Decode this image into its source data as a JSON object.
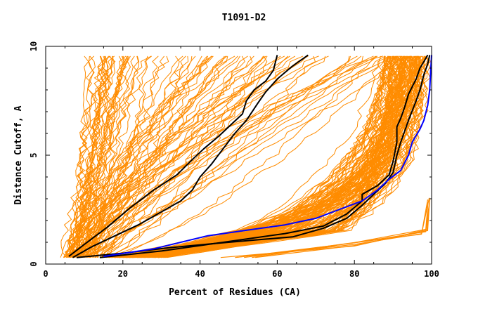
{
  "chart_data": {
    "type": "line",
    "title": "T1091-D2",
    "xlabel": "Percent of Residues (CA)",
    "ylabel": "Distance Cutoff, A",
    "xlim": [
      0,
      100
    ],
    "ylim": [
      0,
      10
    ],
    "x_ticks": [
      "0",
      "20",
      "40",
      "60",
      "80",
      "100"
    ],
    "y_ticks": [
      "0",
      "5",
      "10"
    ],
    "grid": false,
    "colors": {
      "background_curves": "#ff8c00",
      "highlight_black": "#000000",
      "highlight_blue": "#0000ff"
    },
    "highlighted_series": [
      {
        "color": "#000000",
        "points": [
          [
            7,
            0.3
          ],
          [
            12,
            0.8
          ],
          [
            18,
            1.3
          ],
          [
            24,
            1.8
          ],
          [
            30,
            2.4
          ],
          [
            35,
            2.9
          ],
          [
            38,
            3.4
          ],
          [
            40,
            4.0
          ],
          [
            43,
            4.6
          ],
          [
            46,
            5.3
          ],
          [
            49,
            6.0
          ],
          [
            52,
            6.6
          ],
          [
            55,
            7.4
          ],
          [
            57,
            7.9
          ],
          [
            60,
            8.5
          ],
          [
            64,
            9.1
          ],
          [
            68,
            9.6
          ]
        ]
      },
      {
        "color": "#000000",
        "points": [
          [
            6,
            0.35
          ],
          [
            10,
            0.9
          ],
          [
            16,
            1.7
          ],
          [
            22,
            2.6
          ],
          [
            28,
            3.4
          ],
          [
            34,
            4.1
          ],
          [
            38,
            4.8
          ],
          [
            41,
            5.3
          ],
          [
            45,
            5.9
          ],
          [
            48,
            6.4
          ],
          [
            51,
            6.9
          ],
          [
            52,
            7.5
          ],
          [
            54,
            8.0
          ],
          [
            57,
            8.4
          ],
          [
            59,
            8.9
          ],
          [
            60,
            9.6
          ]
        ]
      },
      {
        "color": "#000000",
        "points": [
          [
            8,
            0.3
          ],
          [
            20,
            0.5
          ],
          [
            32,
            0.75
          ],
          [
            44,
            0.95
          ],
          [
            54,
            1.1
          ],
          [
            64,
            1.25
          ],
          [
            72,
            1.65
          ],
          [
            78,
            2.1
          ],
          [
            82,
            2.7
          ],
          [
            85,
            3.2
          ],
          [
            88,
            3.7
          ],
          [
            90,
            4.2
          ],
          [
            91,
            5.0
          ],
          [
            92,
            5.6
          ],
          [
            93,
            6.1
          ],
          [
            94,
            6.6
          ],
          [
            96,
            7.5
          ],
          [
            97,
            8.0
          ],
          [
            98,
            8.7
          ],
          [
            99,
            9.2
          ],
          [
            99.5,
            9.6
          ]
        ]
      },
      {
        "color": "#000000",
        "points": [
          [
            14,
            0.3
          ],
          [
            30,
            0.6
          ],
          [
            46,
            1.0
          ],
          [
            62,
            1.4
          ],
          [
            72,
            1.75
          ],
          [
            78,
            2.3
          ],
          [
            82,
            2.9
          ],
          [
            82,
            3.2
          ],
          [
            86,
            3.6
          ],
          [
            89,
            4.1
          ],
          [
            90,
            4.7
          ],
          [
            91,
            5.6
          ],
          [
            91,
            6.3
          ],
          [
            92,
            6.7
          ],
          [
            93,
            7.2
          ],
          [
            94,
            7.8
          ],
          [
            96,
            8.5
          ],
          [
            97,
            9.0
          ],
          [
            99,
            9.6
          ]
        ]
      },
      {
        "color": "#0000ff",
        "points": [
          [
            15,
            0.35
          ],
          [
            28,
            0.7
          ],
          [
            42,
            1.3
          ],
          [
            52,
            1.55
          ],
          [
            62,
            1.8
          ],
          [
            70,
            2.1
          ],
          [
            76,
            2.5
          ],
          [
            82,
            2.9
          ],
          [
            86,
            3.4
          ],
          [
            89,
            3.9
          ],
          [
            92,
            4.3
          ],
          [
            94,
            5.0
          ],
          [
            95,
            5.6
          ],
          [
            97,
            6.2
          ],
          [
            98,
            6.6
          ],
          [
            99,
            7.3
          ],
          [
            99.5,
            8.0
          ],
          [
            99.8,
            9.0
          ],
          [
            100,
            9.6
          ]
        ]
      }
    ]
  }
}
